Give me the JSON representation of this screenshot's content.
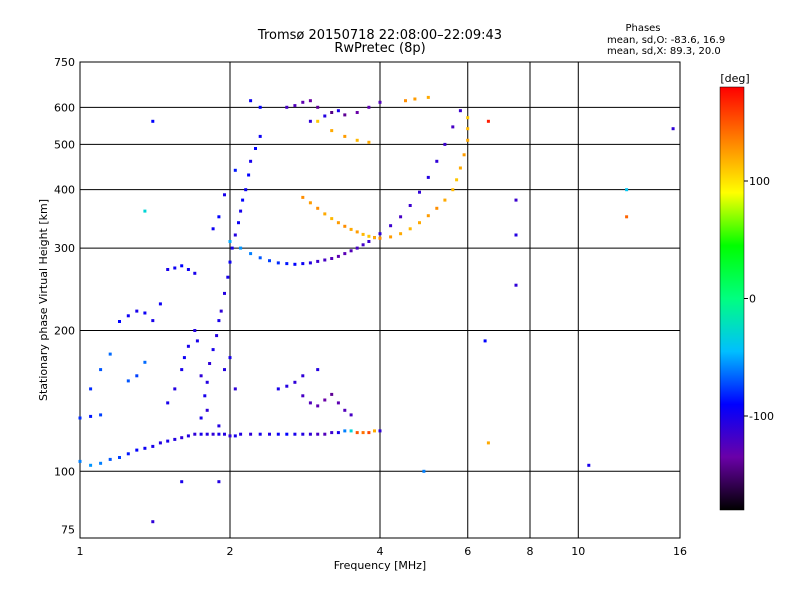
{
  "header": {
    "title_line1": "Tromsø 20150718 22:08:00–22:09:43",
    "title_line2": "RwPretec (8p)"
  },
  "stats": {
    "heading": "Phases",
    "line_o": "mean, sd,O: -83.6, 16.9",
    "line_x": "mean, sd,X: 89.3, 20.0"
  },
  "colors": {
    "background": "#ffffff",
    "grid": "#000000",
    "colormap": [
      "#000000",
      "#6a00a8",
      "#0000ff",
      "#00bfff",
      "#00ff80",
      "#00ff00",
      "#ffff00",
      "#ff8000",
      "#ff0000"
    ]
  },
  "colorbar": {
    "unit": "[deg]",
    "min": -180,
    "max": 180,
    "ticks": [
      100,
      0,
      -100
    ],
    "tick_labels": [
      "100",
      "0",
      "-100"
    ]
  },
  "chart_data": {
    "type": "scatter",
    "title": "Tromsø 20150718 22:08:00–22:09:43",
    "subtitle": "RwPretec (8p)",
    "xlabel": "Frequency [MHz]",
    "ylabel": "Stationary phase Virtual Height [km]",
    "xscale": "log",
    "yscale": "log",
    "xlim": [
      1,
      16
    ],
    "ylim": [
      72,
      750
    ],
    "grid": true,
    "xticks": [
      1,
      2,
      4,
      6,
      8,
      10,
      16
    ],
    "xtick_labels": [
      "1",
      "2",
      "4",
      "6",
      "8",
      "10",
      "16"
    ],
    "yticks": [
      75,
      100,
      200,
      300,
      400,
      500,
      600,
      750
    ],
    "ytick_labels": [
      "75",
      "100",
      "200",
      "300",
      "400",
      "500",
      "600",
      "750"
    ],
    "color_variable": "Phase",
    "series": [
      {
        "name": "",
        "points": [
          [
            1.0,
            105,
            -60
          ],
          [
            1.05,
            103,
            -55
          ],
          [
            1.1,
            104,
            -60
          ],
          [
            1.15,
            106,
            -70
          ],
          [
            1.2,
            107,
            -75
          ],
          [
            1.25,
            109,
            -85
          ],
          [
            1.3,
            111,
            -90
          ],
          [
            1.35,
            112,
            -95
          ],
          [
            1.4,
            113,
            -100
          ],
          [
            1.45,
            115,
            -105
          ],
          [
            1.5,
            116,
            -100
          ],
          [
            1.55,
            117,
            -105
          ],
          [
            1.6,
            118,
            -110
          ],
          [
            1.65,
            119,
            -105
          ],
          [
            1.7,
            120,
            -110
          ],
          [
            1.75,
            120,
            -100
          ],
          [
            1.8,
            120,
            -105
          ],
          [
            1.85,
            120,
            -110
          ],
          [
            1.9,
            120,
            -100
          ],
          [
            1.95,
            120,
            -105
          ],
          [
            2.0,
            119,
            -110
          ],
          [
            2.05,
            119,
            -100
          ],
          [
            2.1,
            120,
            -105
          ],
          [
            2.2,
            120,
            -110
          ],
          [
            2.3,
            120,
            -100
          ],
          [
            2.4,
            120,
            -105
          ],
          [
            2.5,
            120,
            -95
          ],
          [
            2.6,
            120,
            -90
          ],
          [
            2.7,
            120,
            -100
          ],
          [
            2.8,
            120,
            -105
          ],
          [
            2.9,
            120,
            -110
          ],
          [
            3.0,
            120,
            -120
          ],
          [
            3.1,
            120,
            -125
          ],
          [
            3.2,
            121,
            -115
          ],
          [
            3.3,
            121,
            -100
          ],
          [
            3.4,
            122,
            -60
          ],
          [
            3.5,
            122,
            -30
          ],
          [
            3.6,
            121,
            150
          ],
          [
            3.7,
            121,
            140
          ],
          [
            3.8,
            121,
            155
          ],
          [
            3.9,
            122,
            120
          ],
          [
            4.0,
            122,
            -110
          ]
        ]
      },
      {
        "name": "",
        "points": [
          [
            1.0,
            130,
            -80
          ],
          [
            1.05,
            131,
            -85
          ],
          [
            1.1,
            132,
            -75
          ],
          [
            1.05,
            150,
            -80
          ],
          [
            1.1,
            165,
            -70
          ],
          [
            1.15,
            178,
            -65
          ],
          [
            1.25,
            156,
            -70
          ],
          [
            1.3,
            160,
            -75
          ],
          [
            1.35,
            171,
            -65
          ],
          [
            1.2,
            209,
            -90
          ],
          [
            1.25,
            215,
            -95
          ],
          [
            1.3,
            220,
            -100
          ],
          [
            1.35,
            218,
            -95
          ],
          [
            1.4,
            210,
            -100
          ],
          [
            1.45,
            228,
            -95
          ],
          [
            1.5,
            270,
            -100
          ],
          [
            1.55,
            272,
            -95
          ],
          [
            1.6,
            275,
            -90
          ],
          [
            1.65,
            270,
            -95
          ],
          [
            1.7,
            265,
            -100
          ]
        ]
      },
      {
        "name": "",
        "points": [
          [
            1.5,
            140,
            -100
          ],
          [
            1.55,
            150,
            -105
          ],
          [
            1.6,
            165,
            -100
          ],
          [
            1.62,
            175,
            -95
          ],
          [
            1.65,
            185,
            -100
          ],
          [
            1.7,
            200,
            -105
          ],
          [
            1.72,
            190,
            -100
          ],
          [
            1.75,
            160,
            -110
          ],
          [
            1.78,
            145,
            -100
          ],
          [
            1.8,
            155,
            -105
          ],
          [
            1.82,
            170,
            -110
          ],
          [
            1.85,
            182,
            -100
          ],
          [
            1.88,
            195,
            -105
          ],
          [
            1.9,
            210,
            -100
          ],
          [
            1.92,
            220,
            -110
          ],
          [
            1.95,
            240,
            -105
          ],
          [
            1.98,
            260,
            -100
          ],
          [
            2.0,
            280,
            -95
          ],
          [
            2.02,
            300,
            -100
          ],
          [
            2.05,
            320,
            -105
          ],
          [
            2.08,
            340,
            -95
          ],
          [
            2.1,
            360,
            -100
          ],
          [
            2.12,
            380,
            -90
          ],
          [
            2.15,
            400,
            -95
          ],
          [
            2.18,
            430,
            -90
          ],
          [
            2.2,
            460,
            -100
          ],
          [
            2.25,
            490,
            -90
          ],
          [
            2.3,
            520,
            -95
          ],
          [
            1.9,
            350,
            -90
          ],
          [
            1.95,
            390,
            -100
          ],
          [
            1.85,
            330,
            -95
          ],
          [
            2.05,
            440,
            -85
          ],
          [
            1.95,
            165,
            -105
          ],
          [
            2.0,
            175,
            -100
          ],
          [
            1.8,
            135,
            -110
          ],
          [
            1.75,
            130,
            -100
          ],
          [
            1.9,
            125,
            -105
          ],
          [
            2.05,
            150,
            -110
          ]
        ]
      },
      {
        "name": "",
        "points": [
          [
            2.0,
            310,
            -50
          ],
          [
            2.1,
            300,
            -55
          ],
          [
            2.2,
            292,
            -60
          ],
          [
            2.3,
            286,
            -70
          ],
          [
            2.4,
            282,
            -75
          ],
          [
            2.5,
            279,
            -80
          ],
          [
            2.6,
            278,
            -85
          ],
          [
            2.7,
            277,
            -90
          ],
          [
            2.8,
            278,
            -95
          ],
          [
            2.9,
            279,
            -105
          ],
          [
            3.0,
            281,
            -115
          ],
          [
            3.1,
            283,
            -120
          ],
          [
            3.2,
            285,
            -125
          ],
          [
            3.3,
            288,
            -130
          ],
          [
            3.4,
            292,
            -128
          ],
          [
            3.5,
            296,
            -125
          ],
          [
            3.6,
            300,
            -120
          ],
          [
            3.7,
            305,
            -118
          ],
          [
            3.8,
            310,
            -115
          ],
          [
            3.9,
            316,
            -112
          ],
          [
            4.0,
            322,
            -110
          ],
          [
            4.2,
            335,
            -115
          ],
          [
            4.4,
            350,
            -120
          ],
          [
            4.6,
            370,
            -115
          ],
          [
            4.8,
            395,
            -110
          ],
          [
            5.0,
            425,
            -105
          ],
          [
            5.2,
            460,
            -110
          ],
          [
            5.4,
            500,
            -115
          ],
          [
            5.6,
            545,
            -120
          ],
          [
            5.8,
            590,
            -115
          ]
        ]
      },
      {
        "name": "",
        "points": [
          [
            2.8,
            385,
            130
          ],
          [
            2.9,
            375,
            125
          ],
          [
            3.0,
            365,
            130
          ],
          [
            3.1,
            355,
            120
          ],
          [
            3.2,
            347,
            115
          ],
          [
            3.3,
            340,
            125
          ],
          [
            3.4,
            334,
            130
          ],
          [
            3.5,
            329,
            120
          ],
          [
            3.6,
            325,
            125
          ],
          [
            3.7,
            321,
            115
          ],
          [
            3.8,
            318,
            110
          ],
          [
            3.9,
            316,
            120
          ],
          [
            4.0,
            315,
            130
          ],
          [
            4.2,
            317,
            125
          ],
          [
            4.4,
            322,
            120
          ],
          [
            4.6,
            330,
            115
          ],
          [
            4.8,
            340,
            120
          ],
          [
            5.0,
            352,
            125
          ],
          [
            5.2,
            365,
            130
          ],
          [
            5.4,
            380,
            120
          ],
          [
            5.6,
            400,
            115
          ],
          [
            5.7,
            420,
            110
          ],
          [
            5.8,
            445,
            120
          ],
          [
            5.9,
            475,
            125
          ],
          [
            6.0,
            510,
            120
          ],
          [
            6.0,
            540,
            115
          ],
          [
            6.0,
            570,
            110
          ],
          [
            3.0,
            560,
            110
          ],
          [
            3.2,
            535,
            120
          ],
          [
            3.4,
            520,
            125
          ],
          [
            3.6,
            510,
            115
          ],
          [
            3.8,
            505,
            120
          ],
          [
            4.5,
            620,
            130
          ],
          [
            4.7,
            625,
            125
          ],
          [
            5.0,
            630,
            120
          ]
        ]
      },
      {
        "name": "",
        "points": [
          [
            2.6,
            600,
            -120
          ],
          [
            2.7,
            605,
            -125
          ],
          [
            2.8,
            615,
            -130
          ],
          [
            2.9,
            620,
            -135
          ],
          [
            3.0,
            600,
            -140
          ],
          [
            3.2,
            585,
            -145
          ],
          [
            3.4,
            578,
            -140
          ],
          [
            3.6,
            585,
            -135
          ],
          [
            3.8,
            600,
            -130
          ],
          [
            4.0,
            615,
            -125
          ],
          [
            2.9,
            560,
            -110
          ],
          [
            3.1,
            575,
            -105
          ],
          [
            3.3,
            590,
            -100
          ],
          [
            2.2,
            620,
            -95
          ],
          [
            2.3,
            600,
            -90
          ]
        ]
      },
      {
        "name": "",
        "points": [
          [
            2.5,
            150,
            -100
          ],
          [
            2.6,
            152,
            -105
          ],
          [
            2.7,
            155,
            -110
          ],
          [
            2.8,
            145,
            -120
          ],
          [
            2.9,
            140,
            -125
          ],
          [
            3.0,
            138,
            -130
          ],
          [
            3.1,
            142,
            -135
          ],
          [
            3.2,
            146,
            -140
          ],
          [
            3.3,
            140,
            -130
          ],
          [
            3.4,
            135,
            -125
          ],
          [
            3.5,
            132,
            -120
          ],
          [
            2.8,
            160,
            -110
          ],
          [
            3.0,
            165,
            -105
          ]
        ]
      },
      {
        "name": "",
        "points": [
          [
            1.4,
            560,
            -90
          ],
          [
            1.4,
            78,
            -110
          ],
          [
            1.6,
            95,
            -100
          ],
          [
            1.9,
            95,
            -105
          ],
          [
            1.35,
            360,
            -30
          ],
          [
            4.9,
            100,
            -60
          ],
          [
            6.6,
            115,
            120
          ],
          [
            6.5,
            190,
            -90
          ],
          [
            7.5,
            250,
            -110
          ],
          [
            7.5,
            320,
            -105
          ],
          [
            10.5,
            103,
            -100
          ],
          [
            12.5,
            400,
            -40
          ],
          [
            12.5,
            350,
            145
          ],
          [
            15.5,
            540,
            -110
          ],
          [
            7.5,
            380,
            -115
          ],
          [
            6.6,
            560,
            170
          ]
        ]
      }
    ]
  },
  "x_axis_label": "Frequency [MHz]",
  "y_axis_label": "Stationary phase Virtual Height [km]"
}
